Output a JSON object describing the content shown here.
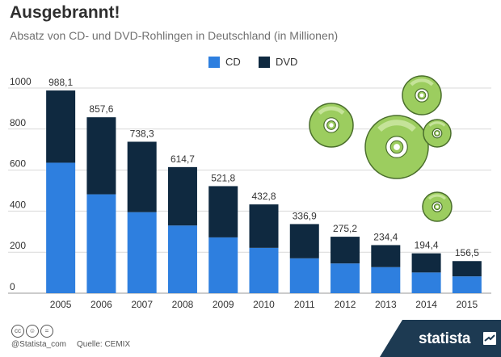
{
  "header": {
    "title": "Ausgebrannt!",
    "subtitle": "Absatz von CD- und DVD-Rohlingen in Deutschland (in Millionen)"
  },
  "legend": {
    "cd_label": "CD",
    "dvd_label": "DVD"
  },
  "colors": {
    "cd": "#2e7fdf",
    "dvd": "#0f2940",
    "disc_green": "#9ccd5f",
    "disc_outline": "#4a6e2c",
    "footer_blue": "#1d3a52",
    "text": "#333333",
    "grid": "#d9d9d9"
  },
  "chart_data": {
    "type": "bar",
    "stacked": true,
    "title": "Ausgebrannt!",
    "subtitle": "Absatz von CD- und DVD-Rohlingen in Deutschland (in Millionen)",
    "categories": [
      "2005",
      "2006",
      "2007",
      "2008",
      "2009",
      "2010",
      "2011",
      "2012",
      "2013",
      "2014",
      "2015"
    ],
    "series": [
      {
        "name": "CD",
        "values": [
          636,
          482,
          395,
          330,
          272,
          221,
          170,
          145,
          127,
          101,
          82
        ]
      },
      {
        "name": "DVD",
        "values": [
          352.1,
          375.6,
          343.3,
          284.7,
          249.8,
          211.8,
          166.9,
          130.2,
          107.4,
          93.4,
          74.5
        ]
      }
    ],
    "totals_labels": [
      "988,1",
      "857,6",
      "738,3",
      "614,7",
      "521,8",
      "432,8",
      "336,9",
      "275,2",
      "234,4",
      "194,4",
      "156,5"
    ],
    "ylim": [
      0,
      1000
    ],
    "yticks": [
      0,
      200,
      400,
      600,
      800,
      1000
    ],
    "grid": true,
    "legend_position": "top-center"
  },
  "decorations": [
    {
      "icon": "disc-icon"
    },
    {
      "icon": "disc-icon"
    },
    {
      "icon": "disc-icon"
    },
    {
      "icon": "disc-icon"
    },
    {
      "icon": "disc-icon"
    }
  ],
  "footer": {
    "license_icons": [
      "cc",
      "by",
      "nd"
    ],
    "handle": "@Statista_com",
    "source": "Quelle: CEMIX",
    "brand": "statista"
  }
}
